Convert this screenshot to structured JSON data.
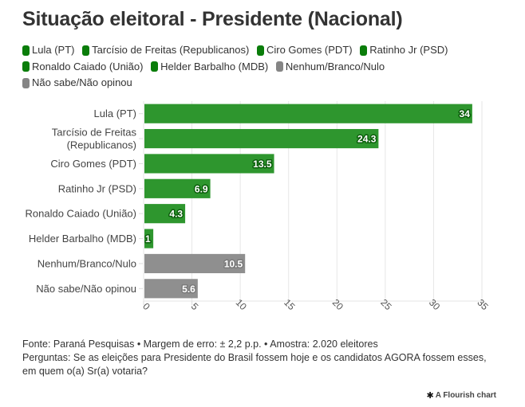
{
  "chart_data": {
    "type": "bar",
    "orientation": "horizontal",
    "title": "Situação eleitoral - Presidente (Nacional)",
    "categories": [
      "Lula (PT)",
      "Tarcísio de Freitas (Republicanos)",
      "Ciro Gomes (PDT)",
      "Ratinho Jr (PSD)",
      "Ronaldo Caiado (União)",
      "Helder Barbalho (MDB)",
      "Nenhum/Branco/Nulo",
      "Não sabe/Não opinou"
    ],
    "category_lines": [
      [
        "Lula (PT)"
      ],
      [
        "Tarcísio de Freitas",
        "(Republicanos)"
      ],
      [
        "Ciro Gomes (PDT)"
      ],
      [
        "Ratinho Jr (PSD)"
      ],
      [
        "Ronaldo Caiado (União)"
      ],
      [
        "Helder Barbalho (MDB)"
      ],
      [
        "Nenhum/Branco/Nulo"
      ],
      [
        "Não sabe/Não opinou"
      ]
    ],
    "values": [
      34,
      24.3,
      13.5,
      6.9,
      4.3,
      1,
      10.5,
      5.6
    ],
    "value_labels": [
      "34",
      "24.3",
      "13.5",
      "6.9",
      "4.3",
      "1",
      "10.5",
      "5.6"
    ],
    "colors": [
      "#2e962e",
      "#2e962e",
      "#2e962e",
      "#2e962e",
      "#2e962e",
      "#2e962e",
      "#8f8f8f",
      "#8f8f8f"
    ],
    "xlabel": "",
    "ylabel": "",
    "xlim": [
      0,
      35
    ],
    "x_ticks": [
      0,
      5,
      10,
      15,
      20,
      25,
      30,
      35
    ],
    "x_tick_labels": [
      "0",
      "5",
      "10",
      "15",
      "20",
      "25",
      "30",
      "35"
    ],
    "grid": true,
    "legend_position": "top-left"
  },
  "legend": [
    {
      "label": "Lula (PT)",
      "color": "#0a7d0a"
    },
    {
      "label": "Tarcísio de Freitas (Republicanos)",
      "color": "#0a7d0a"
    },
    {
      "label": "Ciro Gomes (PDT)",
      "color": "#0a7d0a"
    },
    {
      "label": "Ratinho Jr (PSD)",
      "color": "#0a7d0a"
    },
    {
      "label": "Ronaldo Caiado (União)",
      "color": "#0a7d0a"
    },
    {
      "label": "Helder Barbalho (MDB)",
      "color": "#0a7d0a"
    },
    {
      "label": "Nenhum/Branco/Nulo",
      "color": "#858585"
    },
    {
      "label": "Não sabe/Não opinou",
      "color": "#858585"
    }
  ],
  "footer": {
    "source": "Fonte: Paraná Pesquisas • Margem de erro: ± 2,2 p.p. • Amostra: 2.020 eleitores",
    "question": "Perguntas: Se as eleições para Presidente do Brasil fossem hoje e os candidatos AGORA fossem esses, em quem o(a) Sr(a) votaria?"
  },
  "credit": {
    "icon": "flourish-asterisk-icon",
    "label": "A Flourish chart"
  }
}
